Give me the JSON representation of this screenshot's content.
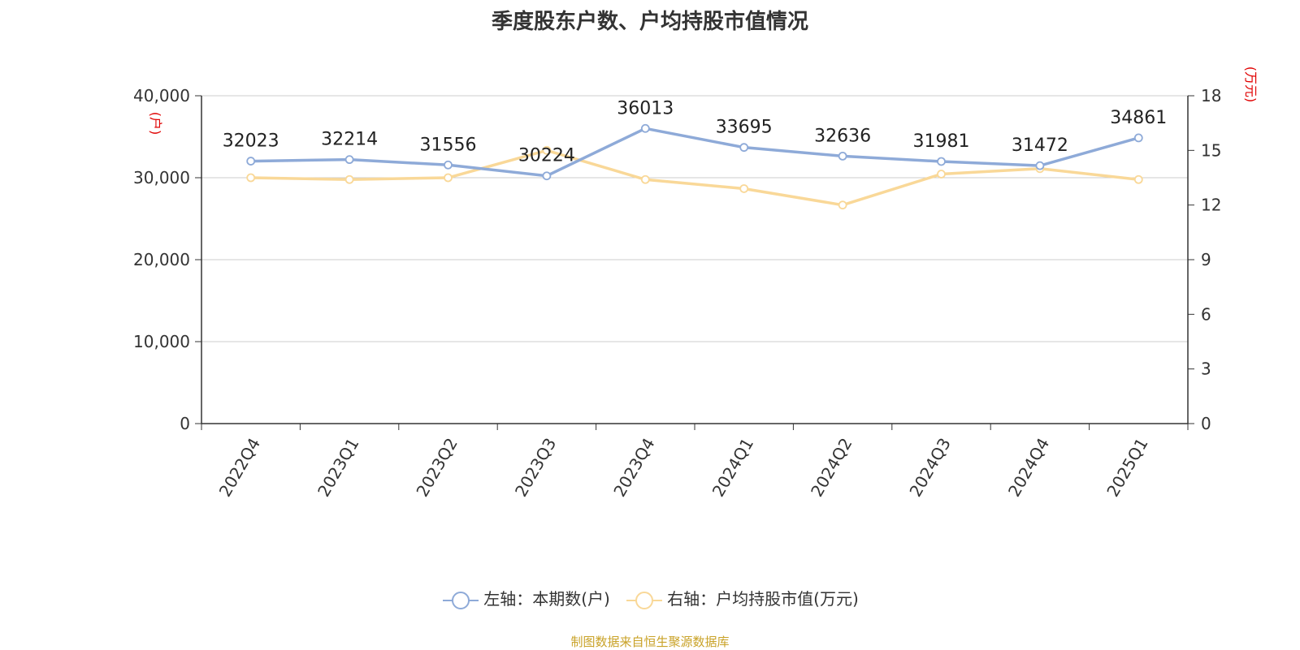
{
  "title": "季度股东户数、户均持股市值情况",
  "source": "制图数据来自恒生聚源数据库",
  "colors": {
    "left_series": "#8eaad8",
    "right_series": "#f9d898",
    "grid": "#cccccc",
    "axis": "#333333",
    "unit": "#e00000"
  },
  "chart_data": {
    "type": "line",
    "title": "季度股东户数、户均持股市值情况",
    "categories": [
      "2022Q4",
      "2023Q1",
      "2023Q2",
      "2023Q3",
      "2023Q4",
      "2024Q1",
      "2024Q2",
      "2024Q3",
      "2024Q4",
      "2025Q1"
    ],
    "series": [
      {
        "name": "左轴：本期数(户)",
        "axis": "left",
        "values": [
          32023,
          32214,
          31556,
          30224,
          36013,
          33695,
          32636,
          31981,
          31472,
          34861
        ]
      },
      {
        "name": "右轴：户均持股市值(万元)",
        "axis": "right",
        "values": [
          13.5,
          13.4,
          13.5,
          15.0,
          13.4,
          12.9,
          12.0,
          13.7,
          14.0,
          13.4
        ]
      }
    ],
    "y_left": {
      "label": "(户)",
      "min": 0,
      "max": 40000,
      "ticks": [
        "0",
        "10,000",
        "20,000",
        "30,000",
        "40,000"
      ],
      "tick_values": [
        0,
        10000,
        20000,
        30000,
        40000
      ]
    },
    "y_right": {
      "label": "(万元)",
      "min": 0,
      "max": 18,
      "ticks": [
        "0",
        "3",
        "6",
        "9",
        "12",
        "15",
        "18"
      ],
      "tick_values": [
        0,
        3,
        6,
        9,
        12,
        15,
        18
      ]
    },
    "data_labels": [
      "32023",
      "32214",
      "31556",
      "30224",
      "36013",
      "33695",
      "32636",
      "31981",
      "31472",
      "34861"
    ],
    "grid": true,
    "legend_position": "bottom"
  }
}
